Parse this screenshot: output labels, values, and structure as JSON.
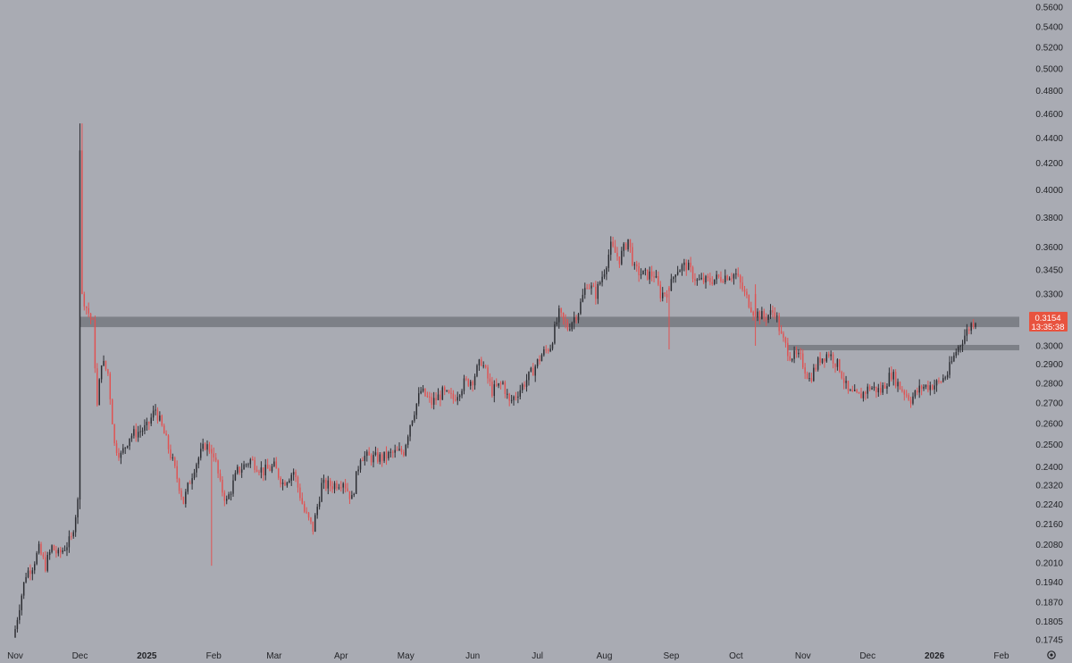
{
  "chart_data": {
    "type": "candlestick",
    "title": "",
    "xlabel": "",
    "ylabel": "",
    "y_scale": "log",
    "ylim": [
      0.172,
      0.565
    ],
    "grid": false,
    "colors": {
      "background": "#a9abb3",
      "up_candle": "#2b2c31",
      "down_candle": "#e05252",
      "zone": "#6f7178",
      "price_tag": "#e8533f",
      "axis_text": "#222327"
    },
    "y_ticks": [
      "0.5600",
      "0.5400",
      "0.5200",
      "0.5000",
      "0.4800",
      "0.4600",
      "0.4400",
      "0.4200",
      "0.4000",
      "0.3800",
      "0.3600",
      "0.3450",
      "0.3300",
      "0.3150",
      "0.3000",
      "0.2900",
      "0.2800",
      "0.2700",
      "0.2600",
      "0.2500",
      "0.2400",
      "0.2320",
      "0.2240",
      "0.2160",
      "0.2080",
      "0.2010",
      "0.1940",
      "0.1870",
      "0.1805",
      "0.1745"
    ],
    "x_ticks": [
      {
        "label": "Nov",
        "date": "2024-11-01",
        "bold": false
      },
      {
        "label": "Dec",
        "date": "2024-12-01",
        "bold": false
      },
      {
        "label": "2025",
        "date": "2025-01-01",
        "bold": true
      },
      {
        "label": "Feb",
        "date": "2025-02-01",
        "bold": false
      },
      {
        "label": "Mar",
        "date": "2025-03-01",
        "bold": false
      },
      {
        "label": "Apr",
        "date": "2025-04-01",
        "bold": false
      },
      {
        "label": "May",
        "date": "2025-05-01",
        "bold": false
      },
      {
        "label": "Jun",
        "date": "2025-06-01",
        "bold": false
      },
      {
        "label": "Jul",
        "date": "2025-07-01",
        "bold": false
      },
      {
        "label": "Aug",
        "date": "2025-08-01",
        "bold": false
      },
      {
        "label": "Sep",
        "date": "2025-09-01",
        "bold": false
      },
      {
        "label": "Oct",
        "date": "2025-10-01",
        "bold": false
      },
      {
        "label": "Nov",
        "date": "2025-11-01",
        "bold": false
      },
      {
        "label": "Dec",
        "date": "2025-12-01",
        "bold": false
      },
      {
        "label": "2026",
        "date": "2026-01-01",
        "bold": true
      },
      {
        "label": "Feb",
        "date": "2026-02-01",
        "bold": false
      }
    ],
    "x_range": [
      "2024-11-01",
      "2026-02-01"
    ],
    "close_path": {
      "start_date": "2024-11-01",
      "interval_days": 1,
      "anchors": [
        [
          "2024-11-01",
          0.178
        ],
        [
          "2024-11-03",
          0.186
        ],
        [
          "2024-11-06",
          0.197
        ],
        [
          "2024-11-09",
          0.2
        ],
        [
          "2024-11-12",
          0.206
        ],
        [
          "2024-11-15",
          0.2
        ],
        [
          "2024-11-18",
          0.207
        ],
        [
          "2024-11-21",
          0.204
        ],
        [
          "2024-11-24",
          0.207
        ],
        [
          "2024-11-27",
          0.21
        ],
        [
          "2024-11-30",
          0.225
        ],
        [
          "2024-12-01",
          0.43
        ],
        [
          "2024-12-02",
          0.33
        ],
        [
          "2024-12-04",
          0.322
        ],
        [
          "2024-12-07",
          0.312
        ],
        [
          "2024-12-09",
          0.268
        ],
        [
          "2024-12-11",
          0.292
        ],
        [
          "2024-12-14",
          0.285
        ],
        [
          "2024-12-17",
          0.25
        ],
        [
          "2024-12-20",
          0.245
        ],
        [
          "2024-12-24",
          0.254
        ],
        [
          "2024-12-28",
          0.256
        ],
        [
          "2025-01-01",
          0.258
        ],
        [
          "2025-01-05",
          0.267
        ],
        [
          "2025-01-09",
          0.255
        ],
        [
          "2025-01-13",
          0.242
        ],
        [
          "2025-01-18",
          0.225
        ],
        [
          "2025-01-23",
          0.24
        ],
        [
          "2025-01-28",
          0.25
        ],
        [
          "2025-02-01",
          0.246
        ],
        [
          "2025-02-04",
          0.232
        ],
        [
          "2025-02-07",
          0.225
        ],
        [
          "2025-02-12",
          0.238
        ],
        [
          "2025-02-18",
          0.243
        ],
        [
          "2025-02-24",
          0.238
        ],
        [
          "2025-03-01",
          0.24
        ],
        [
          "2025-03-05",
          0.233
        ],
        [
          "2025-03-10",
          0.238
        ],
        [
          "2025-03-15",
          0.221
        ],
        [
          "2025-03-19",
          0.214
        ],
        [
          "2025-03-23",
          0.232
        ],
        [
          "2025-03-28",
          0.232
        ],
        [
          "2025-04-02",
          0.234
        ],
        [
          "2025-04-06",
          0.226
        ],
        [
          "2025-04-10",
          0.245
        ],
        [
          "2025-04-15",
          0.244
        ],
        [
          "2025-04-20",
          0.244
        ],
        [
          "2025-04-25",
          0.246
        ],
        [
          "2025-04-30",
          0.247
        ],
        [
          "2025-05-03",
          0.26
        ],
        [
          "2025-05-08",
          0.276
        ],
        [
          "2025-05-13",
          0.27
        ],
        [
          "2025-05-18",
          0.275
        ],
        [
          "2025-05-23",
          0.272
        ],
        [
          "2025-05-28",
          0.28
        ],
        [
          "2025-06-01",
          0.282
        ],
        [
          "2025-06-05",
          0.292
        ],
        [
          "2025-06-10",
          0.276
        ],
        [
          "2025-06-15",
          0.28
        ],
        [
          "2025-06-18",
          0.27
        ],
        [
          "2025-06-23",
          0.277
        ],
        [
          "2025-06-28",
          0.285
        ],
        [
          "2025-07-03",
          0.295
        ],
        [
          "2025-07-07",
          0.3
        ],
        [
          "2025-07-11",
          0.318
        ],
        [
          "2025-07-15",
          0.31
        ],
        [
          "2025-07-20",
          0.32
        ],
        [
          "2025-07-24",
          0.337
        ],
        [
          "2025-07-28",
          0.33
        ],
        [
          "2025-08-01",
          0.345
        ],
        [
          "2025-08-04",
          0.36
        ],
        [
          "2025-08-08",
          0.352
        ],
        [
          "2025-08-12",
          0.365
        ],
        [
          "2025-08-15",
          0.345
        ],
        [
          "2025-08-19",
          0.342
        ],
        [
          "2025-08-24",
          0.342
        ],
        [
          "2025-08-27",
          0.33
        ],
        [
          "2025-08-31",
          0.332
        ],
        [
          "2025-09-03",
          0.345
        ],
        [
          "2025-09-08",
          0.348
        ],
        [
          "2025-09-13",
          0.338
        ],
        [
          "2025-09-18",
          0.338
        ],
        [
          "2025-09-23",
          0.34
        ],
        [
          "2025-09-28",
          0.342
        ],
        [
          "2025-10-01",
          0.342
        ],
        [
          "2025-10-05",
          0.33
        ],
        [
          "2025-10-09",
          0.32
        ],
        [
          "2025-10-14",
          0.316
        ],
        [
          "2025-10-19",
          0.32
        ],
        [
          "2025-10-22",
          0.305
        ],
        [
          "2025-10-26",
          0.295
        ],
        [
          "2025-10-31",
          0.293
        ],
        [
          "2025-11-04",
          0.282
        ],
        [
          "2025-11-09",
          0.293
        ],
        [
          "2025-11-13",
          0.296
        ],
        [
          "2025-11-18",
          0.288
        ],
        [
          "2025-11-22",
          0.275
        ],
        [
          "2025-11-27",
          0.273
        ],
        [
          "2025-12-02",
          0.278
        ],
        [
          "2025-12-07",
          0.276
        ],
        [
          "2025-12-12",
          0.285
        ],
        [
          "2025-12-16",
          0.278
        ],
        [
          "2025-12-21",
          0.272
        ],
        [
          "2025-12-26",
          0.278
        ],
        [
          "2025-12-31",
          0.279
        ],
        [
          "2026-01-03",
          0.28
        ],
        [
          "2026-01-07",
          0.285
        ],
        [
          "2026-01-11",
          0.297
        ],
        [
          "2026-01-15",
          0.306
        ],
        [
          "2026-01-18",
          0.312
        ],
        [
          "2026-01-20",
          0.315
        ]
      ]
    },
    "highlight_candles": [
      {
        "date": "2024-12-01",
        "open": 0.226,
        "high": 0.452,
        "low": 0.222,
        "close": 0.43
      },
      {
        "date": "2024-12-02",
        "open": 0.43,
        "high": 0.452,
        "low": 0.33,
        "close": 0.33
      },
      {
        "date": "2025-01-31",
        "open": 0.248,
        "high": 0.25,
        "low": 0.2,
        "close": 0.246
      },
      {
        "date": "2025-08-31",
        "open": 0.334,
        "high": 0.335,
        "low": 0.298,
        "close": 0.332
      },
      {
        "date": "2025-10-10",
        "open": 0.33,
        "high": 0.336,
        "low": 0.3,
        "close": 0.316
      }
    ],
    "zones": [
      {
        "from_date": "2024-12-01",
        "to_date": "2026-02-01",
        "low": 0.3105,
        "high": 0.3165
      },
      {
        "from_date": "2025-10-25",
        "to_date": "2026-02-01",
        "low": 0.2975,
        "high": 0.3005
      }
    ],
    "last_price": {
      "value": "0.3154",
      "countdown": "13:35:38"
    }
  },
  "settings_icon": "gear-icon"
}
